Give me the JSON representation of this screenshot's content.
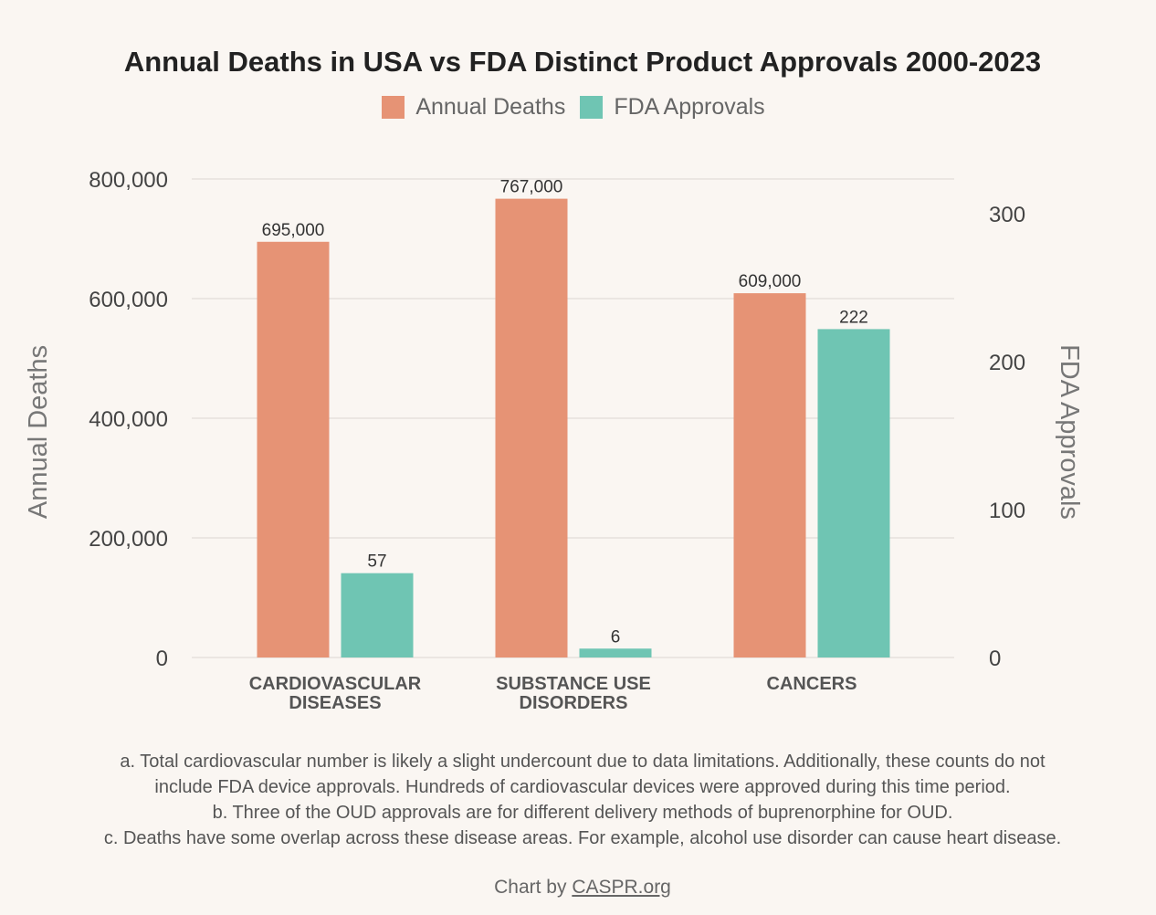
{
  "chart_data": {
    "type": "bar",
    "title": "Annual Deaths in USA vs FDA Distinct Product Approvals 2000-2023",
    "categories": [
      [
        "CARDIOVASCULAR",
        "DISEASES"
      ],
      [
        "SUBSTANCE USE",
        "DISORDERS"
      ],
      [
        "CANCERS"
      ]
    ],
    "series": [
      {
        "name": "Annual Deaths",
        "axis": "left",
        "color": "#e69375",
        "values": [
          695000,
          767000,
          609000
        ],
        "labels": [
          "695,000",
          "767,000",
          "609,000"
        ]
      },
      {
        "name": "FDA Approvals",
        "axis": "right",
        "color": "#6fc5b3",
        "values": [
          57,
          6,
          222
        ],
        "labels": [
          "57",
          "6",
          "222"
        ]
      }
    ],
    "ylabel": "Annual Deaths",
    "ylabel_right": "FDA Approvals",
    "ylim": [
      0,
      800000
    ],
    "ylim_right": [
      0,
      323.5
    ],
    "yticks": [
      {
        "v": 0,
        "t": "0"
      },
      {
        "v": 200000,
        "t": "200,000"
      },
      {
        "v": 400000,
        "t": "400,000"
      },
      {
        "v": 600000,
        "t": "600,000"
      },
      {
        "v": 800000,
        "t": "800,000"
      }
    ],
    "yticks_right": [
      {
        "v": 0,
        "t": "0"
      },
      {
        "v": 100,
        "t": "100"
      },
      {
        "v": 200,
        "t": "200"
      },
      {
        "v": 300,
        "t": "300"
      }
    ],
    "grid": true,
    "legend_placement": "top-center"
  },
  "notes": [
    "a. Total cardiovascular number is likely a slight undercount due to data limitations. Additionally, these counts do not",
    "include FDA device approvals. Hundreds of cardiovascular devices were approved during this time period.",
    "b. Three of the OUD approvals are for different delivery methods of buprenorphine for OUD.",
    "c. Deaths have some overlap across these disease areas. For example, alcohol use disorder can cause heart disease."
  ],
  "credit": {
    "prefix": "Chart by ",
    "link": "CASPR.org"
  }
}
